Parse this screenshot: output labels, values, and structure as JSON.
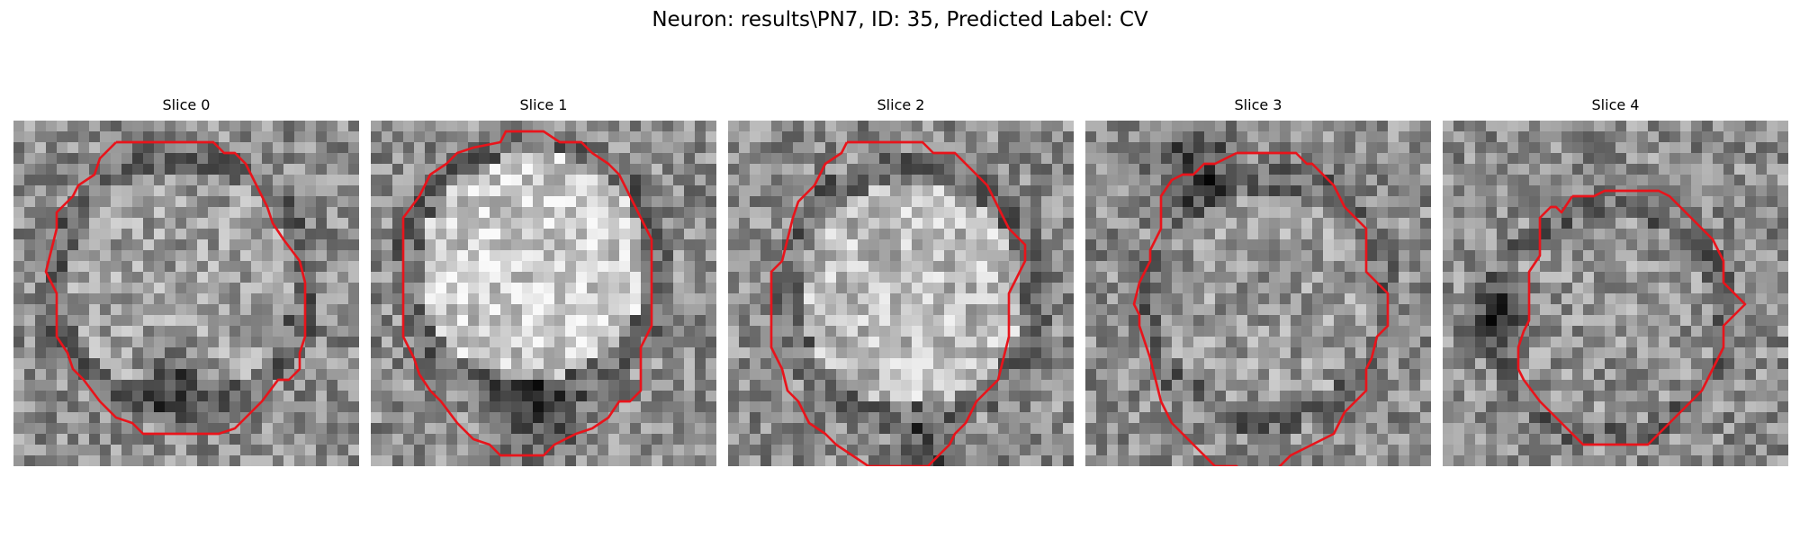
{
  "figure": {
    "title": "Neuron: results\\PN7, ID: 35, Predicted Label: CV",
    "panels": [
      {
        "label": "Slice 0"
      },
      {
        "label": "Slice 1"
      },
      {
        "label": "Slice 2"
      },
      {
        "label": "Slice 3"
      },
      {
        "label": "Slice 4"
      }
    ],
    "contour_color": "#e8141b",
    "image_colormap": "gray"
  }
}
